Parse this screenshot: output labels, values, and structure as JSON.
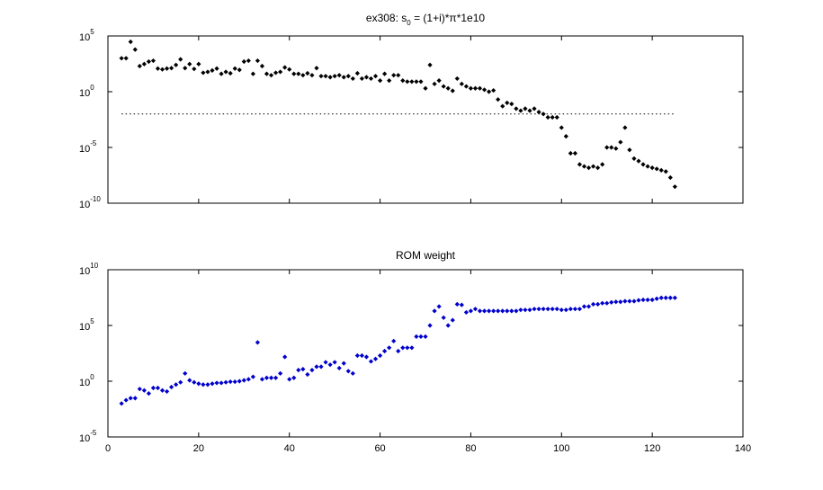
{
  "chart_data": [
    {
      "type": "scatter",
      "title": "ex308: s0 = (1+i)*π*1e10",
      "title_parts": {
        "prefix": "ex308: s",
        "subscript": "0",
        "suffix": " = (1+i)*π*1e10"
      },
      "y_scale": "log",
      "xlim": [
        0,
        140
      ],
      "ylim": [
        1e-10,
        100000.0
      ],
      "y_ticks": [
        {
          "value": 100000.0,
          "base": "10",
          "exp": "5"
        },
        {
          "value": 1.0,
          "base": "10",
          "exp": "0"
        },
        {
          "value": 1e-05,
          "base": "10",
          "exp": "-5"
        },
        {
          "value": 1e-10,
          "base": "10",
          "exp": "-10"
        }
      ],
      "x_ticks_shown": false,
      "marker_color": "#000000",
      "reference_line": {
        "y": 0.01,
        "x_range": [
          3,
          125
        ],
        "style": "dotted"
      },
      "series": [
        {
          "x": [
            3,
            4,
            5,
            6,
            7,
            8,
            9,
            10,
            11,
            12,
            13,
            14,
            15,
            16,
            17,
            18,
            19,
            20,
            21,
            22,
            23,
            24,
            25,
            26,
            27,
            28,
            29,
            30,
            31,
            32,
            33,
            34,
            35,
            36,
            37,
            38,
            39,
            40,
            41,
            42,
            43,
            44,
            45,
            46,
            47,
            48,
            49,
            50,
            51,
            52,
            53,
            54,
            55,
            56,
            57,
            58,
            59,
            60,
            61,
            62,
            63,
            64,
            65,
            66,
            67,
            68,
            69,
            70,
            71,
            72,
            73,
            74,
            75,
            76,
            77,
            78,
            79,
            80,
            81,
            82,
            83,
            84,
            85,
            86,
            87,
            88,
            89,
            90,
            91,
            92,
            93,
            94,
            95,
            96,
            97,
            98,
            99,
            100,
            101,
            102,
            103,
            104,
            105,
            106,
            107,
            108,
            109,
            110,
            111,
            112,
            113,
            114,
            115,
            116,
            117,
            118,
            119,
            120,
            121,
            122,
            123,
            124,
            125
          ],
          "y": [
            1000.0,
            1000.0,
            30000.0,
            6000.0,
            200.0,
            300.0,
            500.0,
            600.0,
            120.0,
            100.0,
            120.0,
            130.0,
            250.0,
            800.0,
            130.0,
            300.0,
            110.0,
            300.0,
            50,
            60,
            80,
            120.0,
            40,
            60,
            45,
            120.0,
            90,
            500.0,
            600.0,
            40,
            600.0,
            200.0,
            40,
            30,
            50,
            60,
            150.0,
            100.0,
            40,
            40,
            30,
            45,
            30,
            130.0,
            25,
            25,
            20,
            25,
            30,
            20,
            25,
            15,
            45,
            15,
            20,
            15,
            25,
            10,
            40,
            10,
            30,
            30,
            10,
            8,
            8,
            8,
            8,
            2,
            250.0,
            5,
            10,
            3,
            2,
            1.2,
            15,
            5,
            3,
            2,
            2,
            2,
            1.5,
            1,
            1.3,
            0.2,
            0.05,
            0.1,
            0.08,
            0.03,
            0.02,
            0.03,
            0.02,
            0.03,
            0.015,
            0.01,
            0.005,
            0.005,
            0.005,
            0.0006,
            0.0001,
            3e-06,
            3e-06,
            3e-07,
            2e-07,
            1.5e-07,
            2e-07,
            1.5e-07,
            3e-07,
            1e-05,
            1e-05,
            8e-06,
            3e-05,
            0.0006,
            6e-06,
            1e-06,
            6e-07,
            3e-07,
            2e-07,
            1.5e-07,
            1.2e-07,
            9e-08,
            7e-08,
            2e-08,
            3e-09
          ]
        }
      ]
    },
    {
      "type": "scatter",
      "title": "ROM weight",
      "y_scale": "log",
      "xlim": [
        0,
        140
      ],
      "ylim": [
        1e-05,
        10000000000.0
      ],
      "x_ticks": [
        "0",
        "20",
        "40",
        "60",
        "80",
        "100",
        "120",
        "140"
      ],
      "y_ticks": [
        {
          "value": 10000000000.0,
          "base": "10",
          "exp": "10"
        },
        {
          "value": 100000.0,
          "base": "10",
          "exp": "5"
        },
        {
          "value": 1.0,
          "base": "10",
          "exp": "0"
        },
        {
          "value": 1e-05,
          "base": "10",
          "exp": "-5"
        }
      ],
      "marker_color": "#0000cc",
      "series": [
        {
          "x": [
            3,
            4,
            5,
            6,
            7,
            8,
            9,
            10,
            11,
            12,
            13,
            14,
            15,
            16,
            17,
            18,
            19,
            20,
            21,
            22,
            23,
            24,
            25,
            26,
            27,
            28,
            29,
            30,
            31,
            32,
            33,
            34,
            35,
            36,
            37,
            38,
            39,
            40,
            41,
            42,
            43,
            44,
            45,
            46,
            47,
            48,
            49,
            50,
            51,
            52,
            53,
            54,
            55,
            56,
            57,
            58,
            59,
            60,
            61,
            62,
            63,
            64,
            65,
            66,
            67,
            68,
            69,
            70,
            71,
            72,
            73,
            74,
            75,
            76,
            77,
            78,
            79,
            80,
            81,
            82,
            83,
            84,
            85,
            86,
            87,
            88,
            89,
            90,
            91,
            92,
            93,
            94,
            95,
            96,
            97,
            98,
            99,
            100,
            101,
            102,
            103,
            104,
            105,
            106,
            107,
            108,
            109,
            110,
            111,
            112,
            113,
            114,
            115,
            116,
            117,
            118,
            119,
            120,
            121,
            122,
            123,
            124,
            125
          ],
          "y": [
            0.01,
            0.02,
            0.03,
            0.03,
            0.2,
            0.15,
            0.08,
            0.25,
            0.25,
            0.15,
            0.12,
            0.3,
            0.5,
            0.8,
            5,
            1.2,
            0.8,
            0.6,
            0.5,
            0.5,
            0.6,
            0.7,
            0.7,
            0.8,
            0.9,
            0.9,
            1,
            1.2,
            1.5,
            2.5,
            3000.0,
            1.5,
            2,
            2,
            2,
            5,
            150.0,
            1.5,
            2,
            10,
            12,
            4,
            10,
            20,
            20,
            50,
            30,
            50,
            15,
            40,
            8,
            5,
            200.0,
            200.0,
            150.0,
            60,
            100.0,
            200.0,
            500.0,
            1000.0,
            4000.0,
            500.0,
            1000.0,
            1000.0,
            1000.0,
            10000.0,
            10000.0,
            10000.0,
            100000.0,
            2000000.0,
            5000000.0,
            500000.0,
            100000.0,
            300000.0,
            8000000.0,
            7000000.0,
            1500000.0,
            2000000.0,
            3000000.0,
            2000000.0,
            2000000.0,
            2000000.0,
            2000000.0,
            2000000.0,
            2000000.0,
            2000000.0,
            2000000.0,
            2000000.0,
            2500000.0,
            2500000.0,
            2500000.0,
            3000000.0,
            3000000.0,
            3000000.0,
            3000000.0,
            3000000.0,
            3000000.0,
            2500000.0,
            2500000.0,
            3000000.0,
            3000000.0,
            3000000.0,
            5000000.0,
            5000000.0,
            8000000.0,
            8000000.0,
            10000000.0,
            10000000.0,
            12000000.0,
            13000000.0,
            13000000.0,
            15000000.0,
            15000000.0,
            15000000.0,
            18000000.0,
            20000000.0,
            20000000.0,
            20000000.0,
            25000000.0,
            30000000.0,
            30000000.0,
            30000000.0,
            30000000.0
          ]
        }
      ]
    }
  ]
}
